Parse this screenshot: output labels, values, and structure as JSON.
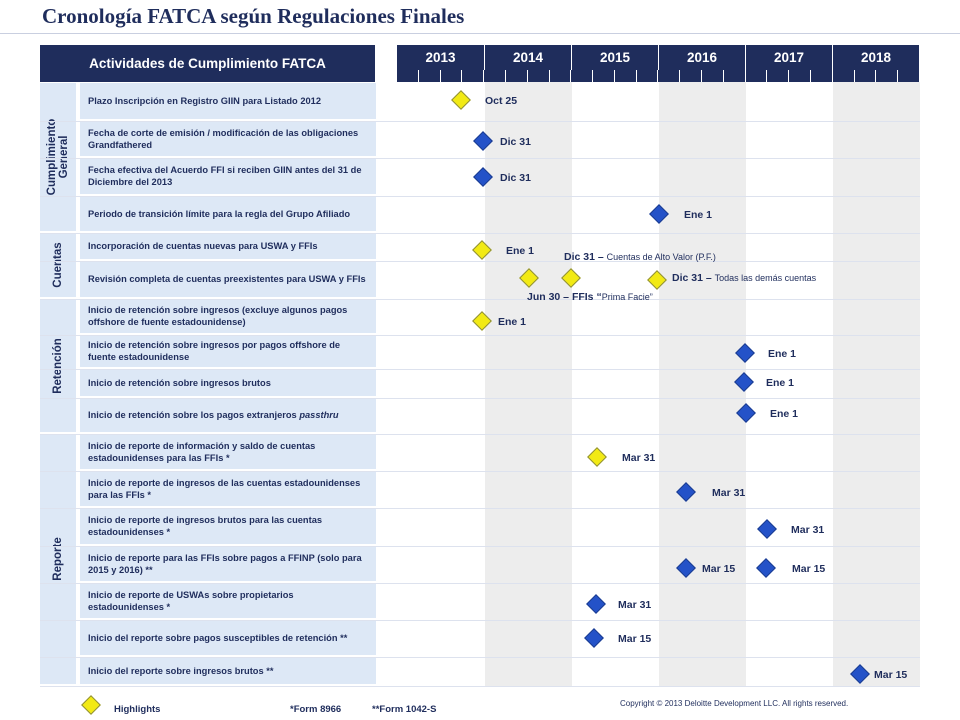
{
  "title": "Cronología FATCA según Regulaciones Finales",
  "header": {
    "activities": "Actividades de Cumplimiento FATCA",
    "years": [
      "2013",
      "2014",
      "2015",
      "2016",
      "2017",
      "2018"
    ]
  },
  "groups": [
    {
      "id": "general",
      "label": "Cumplimiento General"
    },
    {
      "id": "cuentas",
      "label": "Cuentas"
    },
    {
      "id": "retencion",
      "label": "Retención"
    },
    {
      "id": "reporte",
      "label": "Reporte"
    }
  ],
  "tasks": [
    "Plazo Inscripción en Registro GIIN para Listado 2012",
    "Fecha de corte de emisión / modificación de las obligaciones Grandfathered",
    "Fecha efectiva  del Acuerdo FFI si reciben GIIN antes del 31 de Diciembre del 2013",
    "Periodo de transición límite para la regla del Grupo Afiliado",
    "Incorporación de cuentas nuevas para USWA y FFIs",
    "Revisión completa de cuentas preexistentes para USWA y FFIs",
    "Inicio de retención sobre ingresos (excluye algunos pagos offshore de fuente estadounidense)",
    "Inicio de retención sobre ingresos por pagos offshore de fuente estadounidense",
    "Inicio de retención sobre ingresos brutos",
    "Inicio de retención sobre los pagos extranjeros passthru",
    "Inicio de reporte de información y saldo de cuentas estadounidenses para las FFIs *",
    "Inicio de reporte de ingresos de las cuentas estadounidenses para las FFIs *",
    "Inicio de reporte de ingresos brutos para las cuentas estadounidenses *",
    "Inicio de reporte para las FFIs sobre pagos a FFINP (solo para 2015 y 2016) **",
    "Inicio de reporte de USWAs sobre propietarios estadounidenses *",
    "Inicio del reporte sobre pagos susceptibles de retención **",
    "Inicio del reporte sobre ingresos brutos **"
  ],
  "milestones": [
    {
      "row": 0,
      "color": "#f2ea14",
      "label": "Oct 25"
    },
    {
      "row": 1,
      "color": "#2452c8",
      "label": "Dic 31"
    },
    {
      "row": 2,
      "color": "#2452c8",
      "label": "Dic 31"
    },
    {
      "row": 3,
      "color": "#2452c8",
      "label": "Ene 1"
    },
    {
      "row": 4,
      "color": "#f2ea14",
      "label": "Ene 1"
    },
    {
      "row": 5,
      "color": "#f2ea14",
      "label": ""
    },
    {
      "row": 5,
      "color": "#f2ea14",
      "label": ""
    },
    {
      "row": 5,
      "color": "#f2ea14",
      "label": ""
    },
    {
      "row": 6,
      "color": "#f2ea14",
      "label": "Ene 1"
    },
    {
      "row": 7,
      "color": "#2452c8",
      "label": "Ene 1"
    },
    {
      "row": 8,
      "color": "#2452c8",
      "label": "Ene 1"
    },
    {
      "row": 9,
      "color": "#2452c8",
      "label": "Ene 1"
    },
    {
      "row": 10,
      "color": "#f2ea14",
      "label": "Mar 31"
    },
    {
      "row": 11,
      "color": "#2452c8",
      "label": "Mar 31"
    },
    {
      "row": 12,
      "color": "#2452c8",
      "label": "Mar 31"
    },
    {
      "row": 13,
      "color": "#2452c8",
      "label": "Mar 15"
    },
    {
      "row": 13,
      "color": "#2452c8",
      "label": "Mar 15"
    },
    {
      "row": 14,
      "color": "#2452c8",
      "label": "Mar 31"
    },
    {
      "row": 15,
      "color": "#2452c8",
      "label": "Mar 15"
    },
    {
      "row": 16,
      "color": "#2452c8",
      "label": "Mar 15"
    }
  ],
  "annotations": {
    "dic31_hv_date": "Dic 31 –",
    "dic31_hv_text": "Cuentas de Alto Valor (P.F.)",
    "dic31_all_date": "Dic 31 –",
    "dic31_all_text": "Todas las demás cuentas",
    "jun30_date": "Jun 30 – FFIs “",
    "jun30_text": "Prima Facie”"
  },
  "legend": {
    "highlights": "Highlights",
    "form1": "*Form 8966",
    "form2": "**Form 1042-S"
  },
  "colors": {
    "navy": "#1f2d5c",
    "blue": "#2452c8",
    "yellow": "#f2ea14",
    "panel": "#dde8f6",
    "band": "#ededed"
  },
  "copyright": "Copyright © 2013 Deloitte Development LLC. All rights reserved."
}
